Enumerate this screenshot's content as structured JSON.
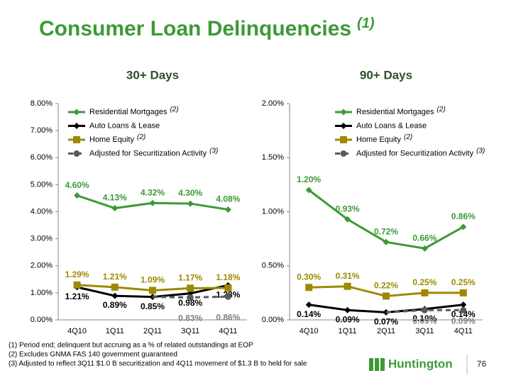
{
  "slide": {
    "title": "Consumer Loan Delinquencies",
    "title_note": "(1)",
    "footnotes": [
      "(1)  Period end; delinquent but accruing as a % of related outstandings at EOP",
      "(2)  Excludes GNMA FAS 140 government guaranteed",
      "(3)  Adjusted to reflect 3Q11 $1.0 B securitization and 4Q11 movement of $1.3 B to held for sale"
    ],
    "logo": "Huntington",
    "page_number": "76"
  },
  "chart_data": [
    {
      "type": "line",
      "title": "30+ Days",
      "categories": [
        "4Q10",
        "1Q11",
        "2Q11",
        "3Q11",
        "4Q11"
      ],
      "ylim": [
        0,
        8
      ],
      "yticks": [
        {
          "value": 0,
          "label": "0.00%"
        },
        {
          "value": 1,
          "label": "1.00%"
        },
        {
          "value": 2,
          "label": "2.00%"
        },
        {
          "value": 3,
          "label": "3.00%"
        },
        {
          "value": 4,
          "label": "4.00%"
        },
        {
          "value": 5,
          "label": "5.00%"
        },
        {
          "value": 6,
          "label": "6.00%"
        },
        {
          "value": 7,
          "label": "7.00%"
        },
        {
          "value": 8,
          "label": "8.00%"
        }
      ],
      "series": [
        {
          "name": "Residential Mortgages",
          "note": "(2)",
          "color": "#3c9a35",
          "marker": "diamond",
          "values": [
            4.6,
            4.13,
            4.32,
            4.3,
            4.08
          ],
          "value_labels": [
            "4.60%",
            "4.13%",
            "4.32%",
            "4.30%",
            "4.08%"
          ]
        },
        {
          "name": "Auto Loans & Lease",
          "color": "#000000",
          "marker": "diamond",
          "values": [
            1.21,
            0.89,
            0.85,
            0.98,
            1.28
          ],
          "value_labels": [
            "1.21%",
            "0.89%",
            "0.85%",
            "0.98%",
            "1.28%"
          ]
        },
        {
          "name": "Home Equity",
          "note": "(2)",
          "color": "#9d8a00",
          "marker": "square",
          "values": [
            1.29,
            1.21,
            1.09,
            1.17,
            1.18
          ],
          "value_labels": [
            "1.29%",
            "1.21%",
            "1.09%",
            "1.17%",
            "1.18%"
          ]
        },
        {
          "name": "Adjusted for Securitization Activity",
          "note": "(3)",
          "color": "#595959",
          "marker": "circle",
          "dashed": true,
          "values": [
            null,
            null,
            0.85,
            0.83,
            0.86
          ],
          "value_labels": [
            null,
            null,
            null,
            "0.83%",
            "0.86%"
          ]
        }
      ]
    },
    {
      "type": "line",
      "title": "90+ Days",
      "categories": [
        "4Q10",
        "1Q11",
        "2Q11",
        "3Q11",
        "4Q11"
      ],
      "ylim": [
        0,
        2
      ],
      "yticks": [
        {
          "value": 0,
          "label": "0.00%"
        },
        {
          "value": 0.5,
          "label": "0.50%"
        },
        {
          "value": 1,
          "label": "1.00%"
        },
        {
          "value": 1.5,
          "label": "1.50%"
        },
        {
          "value": 2,
          "label": "2.00%"
        }
      ],
      "series": [
        {
          "name": "Residential Mortgages",
          "note": "(2)",
          "color": "#3c9a35",
          "marker": "diamond",
          "values": [
            1.2,
            0.93,
            0.72,
            0.66,
            0.86
          ],
          "value_labels": [
            "1.20%",
            "0.93%",
            "0.72%",
            "0.66%",
            "0.86%"
          ]
        },
        {
          "name": "Auto Loans & Lease",
          "color": "#000000",
          "marker": "diamond",
          "values": [
            0.14,
            0.09,
            0.07,
            0.1,
            0.14
          ],
          "value_labels": [
            "0.14%",
            "0.09%",
            "0.07%",
            "0.10%",
            "0.14%"
          ]
        },
        {
          "name": "Home Equity",
          "note": "(2)",
          "color": "#9d8a00",
          "marker": "square",
          "values": [
            0.3,
            0.31,
            0.22,
            0.25,
            0.25
          ],
          "value_labels": [
            "0.30%",
            "0.31%",
            "0.22%",
            "0.25%",
            "0.25%"
          ]
        },
        {
          "name": "Adjusted for Securitization Activity",
          "note": "(3)",
          "color": "#595959",
          "marker": "circle",
          "dashed": true,
          "values": [
            null,
            null,
            0.07,
            0.09,
            0.09
          ],
          "value_labels": [
            null,
            null,
            null,
            "0.09%",
            "0.09%"
          ]
        }
      ]
    }
  ]
}
